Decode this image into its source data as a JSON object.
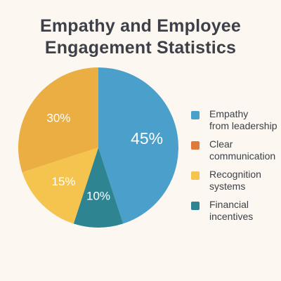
{
  "chart_data": {
    "type": "pie",
    "title_lines": [
      "Empathy and Employee",
      "Engagement Statistics"
    ],
    "slices": [
      {
        "label": "Empathy from leadership",
        "value": 45,
        "value_label": "45%",
        "color": "#4a9fcb"
      },
      {
        "label": "Financial incentives",
        "value": 10,
        "value_label": "10%",
        "color": "#2e8591"
      },
      {
        "label": "Recognition systems",
        "value": 15,
        "value_label": "15%",
        "color": "#f4c44e"
      },
      {
        "label": "Clear communication",
        "value": 30,
        "value_label": "30%",
        "color": "#eaae42"
      }
    ],
    "legend_placement": "right"
  },
  "legend": {
    "items": [
      {
        "lines": [
          "Empathy",
          "from leadership"
        ],
        "color": "#4a9fcb"
      },
      {
        "lines": [
          "Clear",
          "communication"
        ],
        "color": "#e07a3c"
      },
      {
        "lines": [
          "Recognition",
          "systems"
        ],
        "color": "#f4c44e"
      },
      {
        "lines": [
          "Financial",
          "incentives"
        ],
        "color": "#2e8591"
      }
    ]
  }
}
